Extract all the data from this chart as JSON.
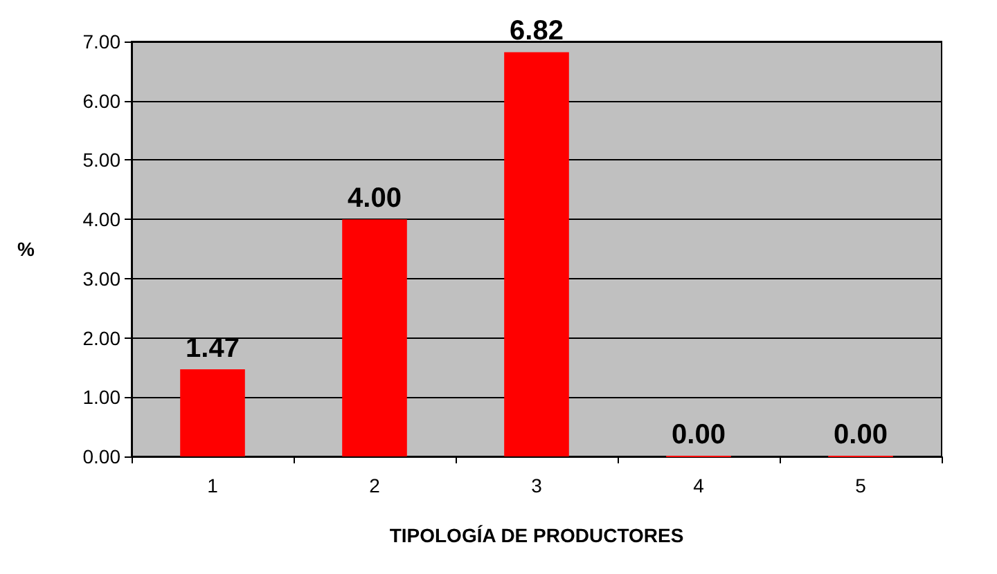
{
  "chart_data": {
    "type": "bar",
    "xlabel": "TIPOLOGÍA DE PRODUCTORES",
    "ylabel": "%",
    "categories": [
      "1",
      "2",
      "3",
      "4",
      "5"
    ],
    "values": [
      1.47,
      4.0,
      6.82,
      0,
      0
    ],
    "value_labels": [
      "1.47",
      "4.00",
      "6.82",
      "0.00",
      "0.00"
    ],
    "color": "#ff0000",
    "ylim": [
      0,
      7
    ],
    "yticks": [
      {
        "value": 0,
        "label": "0.00"
      },
      {
        "value": 1,
        "label": "1.00"
      },
      {
        "value": 2,
        "label": "2.00"
      },
      {
        "value": 3,
        "label": "3.00"
      },
      {
        "value": 4,
        "label": "4.00"
      },
      {
        "value": 5,
        "label": "5.00"
      },
      {
        "value": 6,
        "label": "6.00"
      },
      {
        "value": 7,
        "label": "7.00"
      }
    ],
    "grid": "y"
  }
}
